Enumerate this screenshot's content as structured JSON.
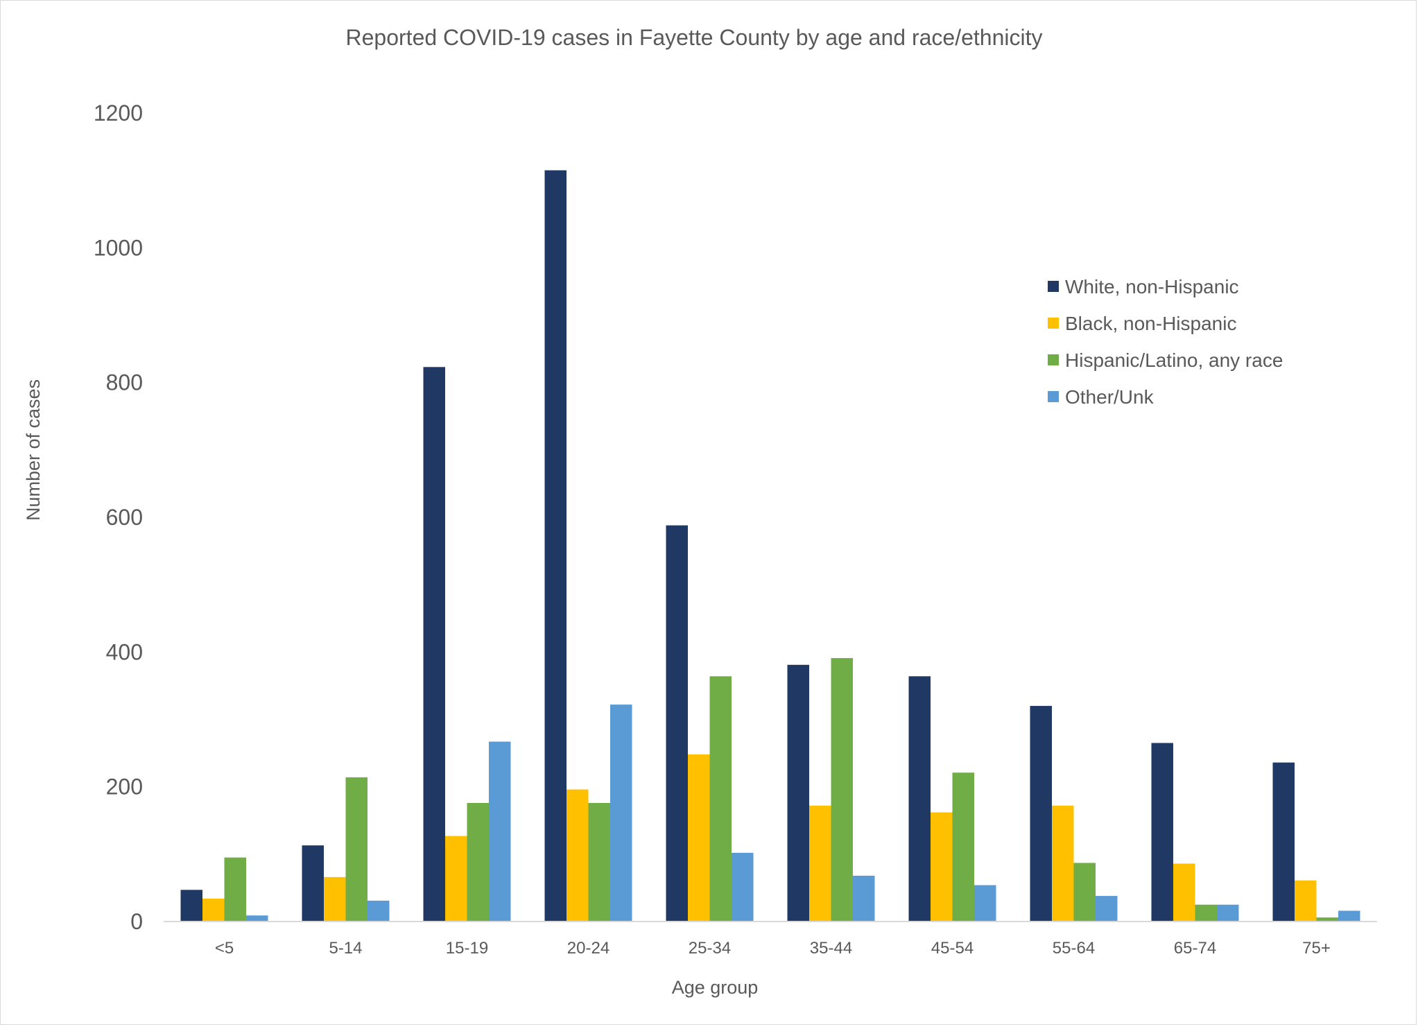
{
  "chart_data": {
    "type": "bar",
    "title": "Reported COVID-19 cases in Fayette County by age and race/ethnicity",
    "xlabel": "Age group",
    "ylabel": "Number of cases",
    "ylim": [
      0,
      1200
    ],
    "yticks": [
      "0",
      "200",
      "400",
      "600",
      "800",
      "1000",
      "1200"
    ],
    "grid": false,
    "legend_position": "top-right",
    "categories": [
      "<5",
      "5-14",
      "15-19",
      "20-24",
      "25-34",
      "35-44",
      "45-54",
      "55-64",
      "65-74",
      "75+"
    ],
    "series": [
      {
        "name": "White, non-Hispanic",
        "color": "#203864",
        "values": [
          47,
          113,
          823,
          1115,
          588,
          381,
          364,
          320,
          265,
          236
        ]
      },
      {
        "name": "Black, non-Hispanic",
        "color": "#ffc000",
        "values": [
          34,
          66,
          127,
          196,
          248,
          172,
          162,
          172,
          86,
          61
        ]
      },
      {
        "name": "Hispanic/Latino, any race",
        "color": "#70ad47",
        "values": [
          95,
          214,
          176,
          176,
          364,
          391,
          221,
          87,
          25,
          6
        ]
      },
      {
        "name": "Other/Unk",
        "color": "#5b9bd5",
        "values": [
          9,
          31,
          267,
          322,
          102,
          68,
          54,
          38,
          25,
          16
        ]
      }
    ]
  }
}
